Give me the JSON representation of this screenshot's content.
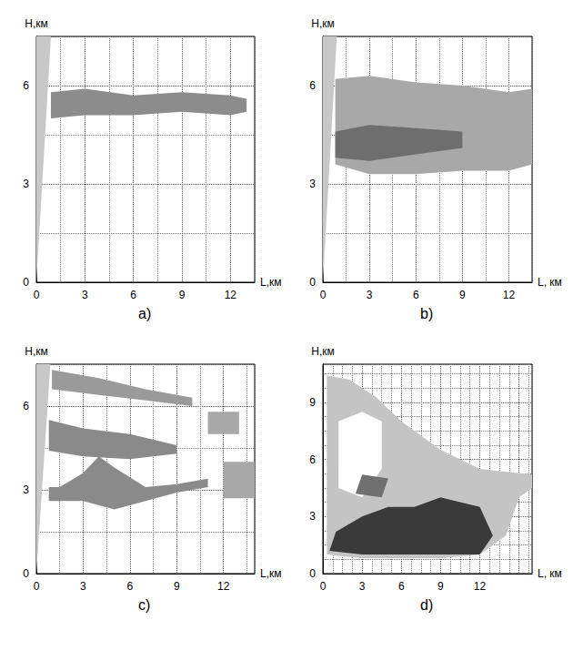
{
  "chart_data": [
    {
      "type": "area",
      "label": "a)",
      "x_label": "L,км",
      "y_label": "H,км",
      "xlim": [
        0,
        13.5
      ],
      "xticks": [
        0,
        3,
        6,
        9,
        12
      ],
      "ylim": [
        0,
        7.5
      ],
      "yticks": [
        0,
        3,
        6
      ],
      "grid": true,
      "series": [
        {
          "color": "#c8c8c8",
          "x": [
            0,
            0,
            0.9
          ],
          "y": [
            0,
            7.5,
            7.5
          ]
        },
        {
          "color": "#8c8c8c",
          "x": [
            0.9,
            3,
            6,
            9,
            12,
            13,
            13,
            12,
            9,
            6,
            3,
            0.9
          ],
          "y": [
            5.0,
            5.1,
            5.1,
            5.2,
            5.1,
            5.2,
            5.6,
            5.7,
            5.8,
            5.7,
            5.9,
            5.8
          ]
        }
      ]
    },
    {
      "type": "area",
      "label": "b)",
      "x_label": "L, км",
      "y_label": "H,км",
      "xlim": [
        0,
        13.5
      ],
      "xticks": [
        0,
        3,
        6,
        9,
        12
      ],
      "ylim": [
        0,
        7.5
      ],
      "yticks": [
        0,
        3,
        6
      ],
      "grid": true,
      "series": [
        {
          "color": "#c8c8c8",
          "x": [
            0,
            0,
            0.9
          ],
          "y": [
            0,
            7.5,
            7.5
          ]
        },
        {
          "color": "#a8a8a8",
          "x": [
            0.8,
            3,
            6,
            9,
            12,
            13.5,
            13.5,
            12,
            9,
            6,
            3,
            0.8
          ],
          "y": [
            3.6,
            3.3,
            3.3,
            3.4,
            3.4,
            3.6,
            5.9,
            5.8,
            6.0,
            6.1,
            6.3,
            6.2
          ]
        },
        {
          "color": "#6e6e6e",
          "x": [
            0.8,
            3,
            6,
            9,
            9,
            6,
            3,
            0.8
          ],
          "y": [
            3.8,
            3.7,
            3.9,
            4.1,
            4.6,
            4.7,
            4.8,
            4.6
          ]
        }
      ]
    },
    {
      "type": "area",
      "label": "c)",
      "x_label": "L,км",
      "y_label": "H,км",
      "xlim": [
        0,
        14
      ],
      "xticks": [
        0,
        3,
        6,
        9,
        12
      ],
      "ylim": [
        0,
        7.5
      ],
      "yticks": [
        0,
        3,
        6
      ],
      "grid": true,
      "series": [
        {
          "color": "#c8c8c8",
          "x": [
            0,
            0,
            0.9
          ],
          "y": [
            0,
            7.5,
            7.5
          ]
        },
        {
          "color": "#9a9a9a",
          "x": [
            1,
            4,
            7,
            10,
            10,
            7,
            4,
            1
          ],
          "y": [
            6.6,
            6.4,
            6.2,
            6.0,
            6.3,
            6.6,
            7.0,
            7.3
          ]
        },
        {
          "color": "#8a8a8a",
          "x": [
            0.8,
            3,
            6,
            9,
            9,
            6,
            3,
            0.8
          ],
          "y": [
            4.4,
            4.2,
            4.1,
            4.3,
            4.6,
            5.0,
            5.2,
            5.5
          ]
        },
        {
          "color": "#8a8a8a",
          "x": [
            0.8,
            3,
            5,
            7,
            9,
            11,
            11,
            9,
            7,
            5,
            4,
            3,
            1.5,
            0.8
          ],
          "y": [
            2.6,
            2.6,
            2.3,
            2.6,
            2.9,
            3.1,
            3.4,
            3.2,
            3.1,
            3.8,
            4.2,
            3.6,
            3.1,
            3.1
          ]
        },
        {
          "color": "#a8a8a8",
          "x": [
            11,
            13,
            13,
            11
          ],
          "y": [
            5.0,
            5.0,
            5.8,
            5.8
          ]
        },
        {
          "color": "#a8a8a8",
          "x": [
            12,
            14,
            14,
            12
          ],
          "y": [
            2.7,
            2.7,
            4.0,
            4.0
          ]
        }
      ]
    },
    {
      "type": "area",
      "label": "d)",
      "x_label": "L, км",
      "y_label": "H,км",
      "xlim": [
        0,
        16
      ],
      "xticks": [
        0,
        3,
        6,
        9,
        12
      ],
      "ylim": [
        0,
        11
      ],
      "yticks": [
        0,
        3,
        6,
        9
      ],
      "grid": true,
      "series": [
        {
          "color": "#c4c4c4",
          "x": [
            0.3,
            3,
            6,
            9,
            12,
            14,
            15,
            16,
            16,
            12,
            9,
            6,
            4,
            2,
            0.3
          ],
          "y": [
            1.0,
            0.8,
            0.8,
            0.8,
            1.0,
            2,
            4,
            4.5,
            5.2,
            5.5,
            6.5,
            8.0,
            9.3,
            10.2,
            10.4
          ]
        },
        {
          "color": "#ffffff",
          "x": [
            1.2,
            3,
            4.5,
            4.5,
            3,
            1.2
          ],
          "y": [
            4.5,
            4,
            5.5,
            8,
            8.5,
            8
          ]
        },
        {
          "color": "#707070",
          "x": [
            2.5,
            4.5,
            5,
            3
          ],
          "y": [
            4.2,
            4.0,
            5.0,
            5.2
          ]
        },
        {
          "color": "#3a3a3a",
          "x": [
            0.5,
            3,
            6,
            9,
            12,
            13,
            12,
            9,
            7,
            5,
            3,
            1
          ],
          "y": [
            1.2,
            1,
            1,
            1,
            1,
            2,
            3.5,
            4,
            3.5,
            3.5,
            3,
            2.2
          ]
        }
      ]
    }
  ]
}
